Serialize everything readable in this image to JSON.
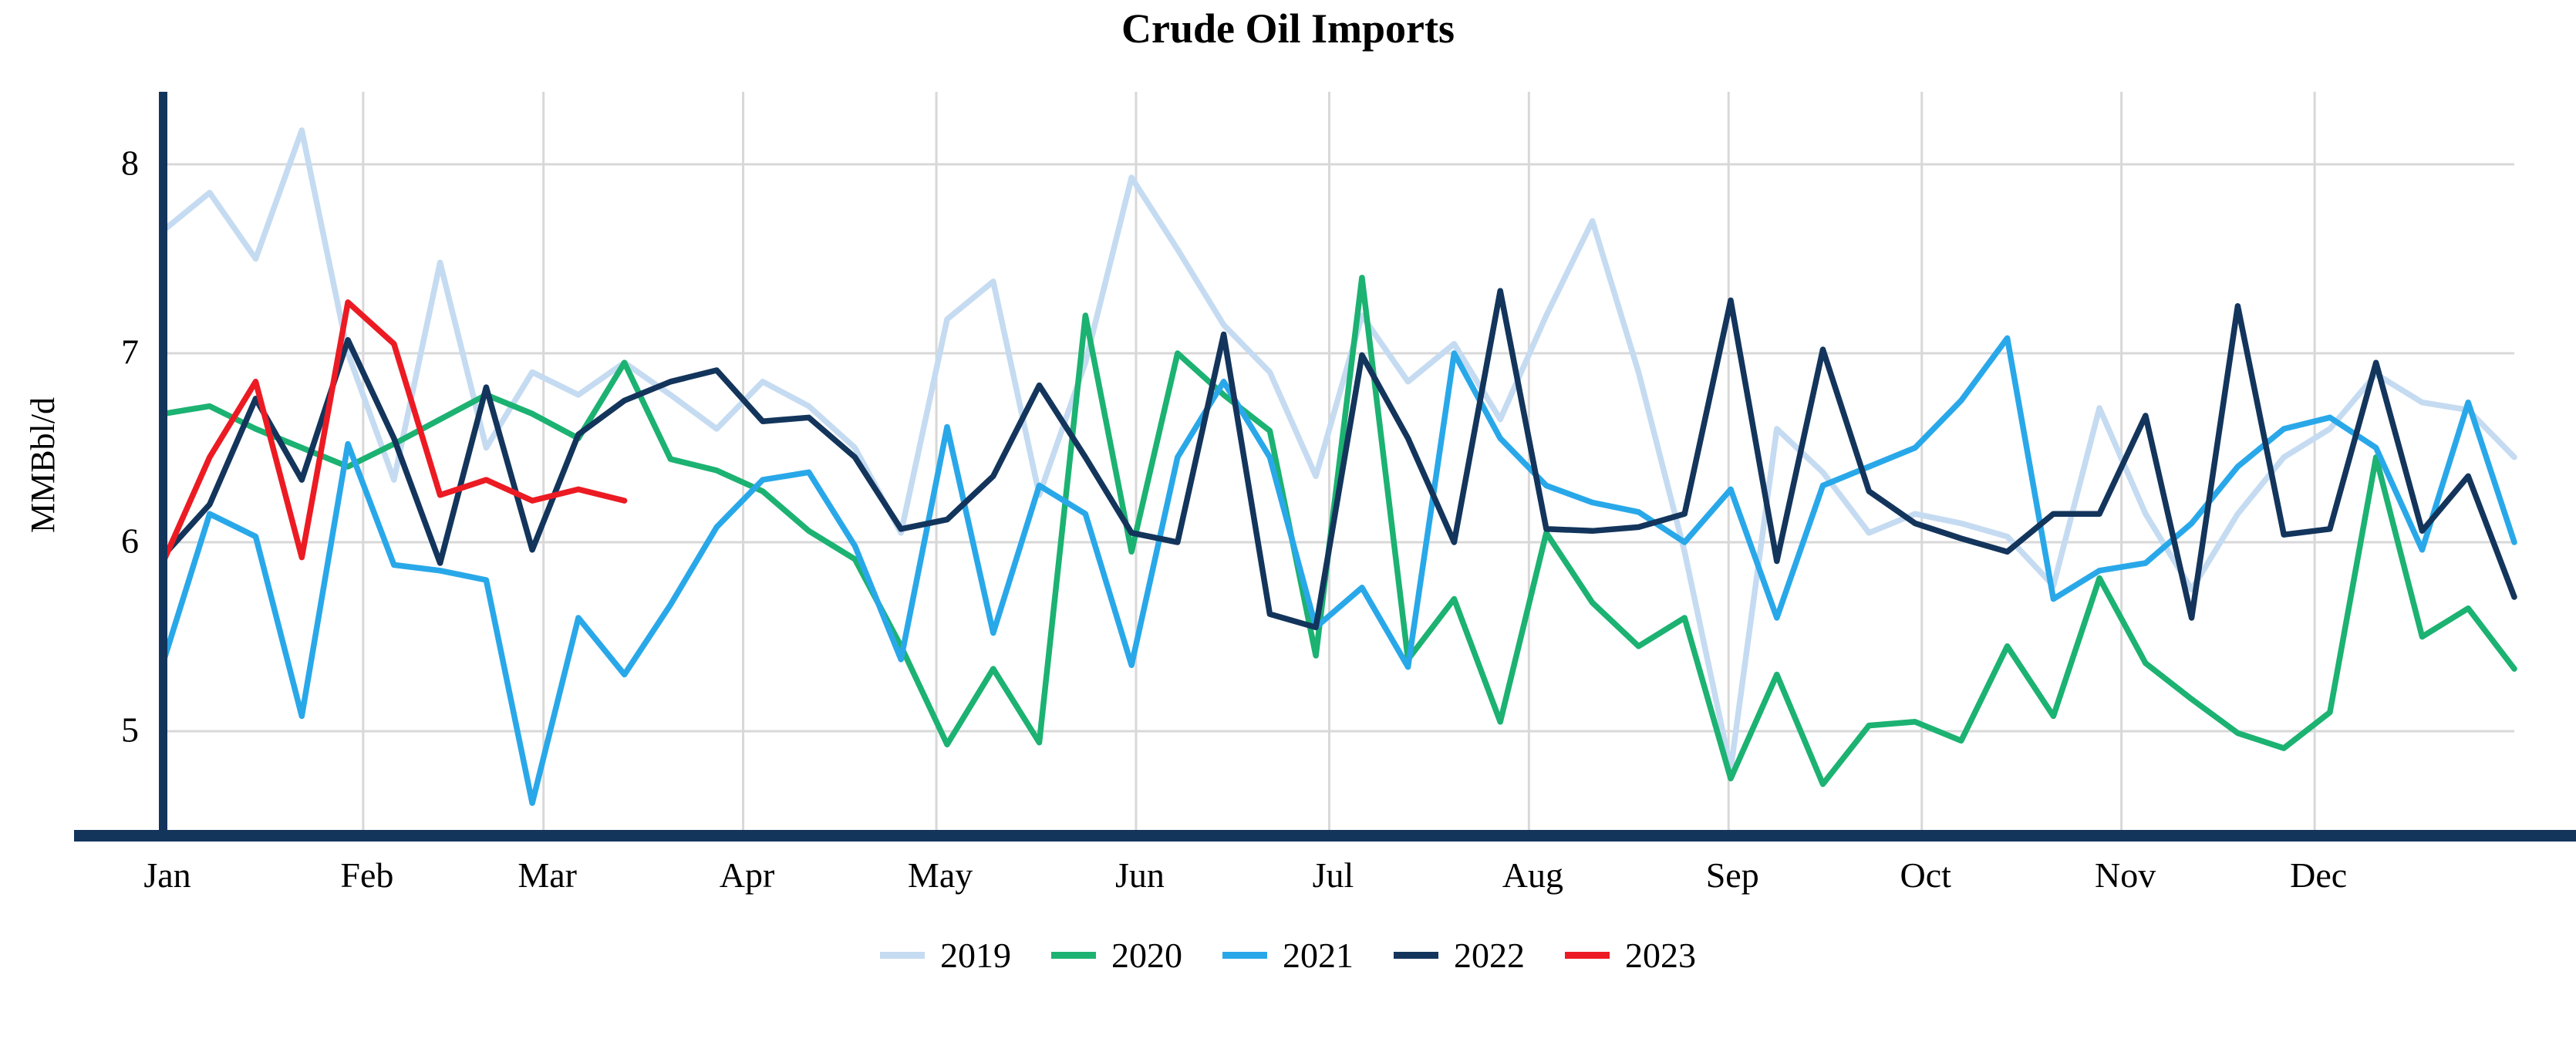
{
  "title": "Crude Oil Imports",
  "chart_data": {
    "type": "line",
    "title": "Crude Oil Imports",
    "xlabel": "",
    "ylabel": "MMBbl/d",
    "y_ticks": [
      5,
      6,
      7,
      8
    ],
    "y_axis_range_visible": [
      4.45,
      8.39
    ],
    "grid": true,
    "grid_color": "#D8D8D8",
    "axis_color": "#13355C",
    "legend_position": "bottom-center",
    "x_tick_labels": [
      "Jan",
      "Feb",
      "Mar",
      "Apr",
      "May",
      "Jun",
      "Jul",
      "Aug",
      "Sep",
      "Oct",
      "Nov",
      "Dec"
    ],
    "month_day_offsets": [
      0,
      31,
      59,
      90,
      120,
      151,
      181,
      212,
      243,
      273,
      304,
      334
    ],
    "days_in_year": 365,
    "points_per_series": 52,
    "x_unit": "week of year",
    "series": [
      {
        "name": "2019",
        "color": "#C5DBF1",
        "values": [
          7.65,
          7.85,
          7.5,
          8.18,
          7.0,
          6.33,
          7.48,
          6.5,
          6.9,
          6.78,
          6.95,
          6.78,
          6.6,
          6.85,
          6.72,
          6.5,
          6.05,
          7.18,
          7.38,
          6.25,
          6.95,
          7.93,
          7.55,
          7.15,
          6.9,
          6.35,
          7.2,
          6.85,
          7.05,
          6.65,
          7.2,
          7.7,
          6.9,
          5.95,
          4.8,
          6.6,
          6.37,
          6.05,
          6.15,
          6.1,
          6.03,
          5.77,
          6.71,
          6.15,
          5.75,
          6.15,
          6.45,
          6.6,
          6.89,
          6.74,
          6.7,
          6.45
        ]
      },
      {
        "name": "2020",
        "color": "#1CB272",
        "values": [
          6.68,
          6.72,
          6.6,
          6.5,
          6.4,
          6.52,
          6.65,
          6.78,
          6.68,
          6.55,
          6.95,
          6.44,
          6.38,
          6.27,
          6.06,
          5.91,
          5.45,
          4.93,
          5.33,
          4.94,
          7.2,
          5.95,
          7.0,
          6.78,
          6.59,
          5.4,
          7.4,
          5.38,
          5.7,
          5.05,
          6.05,
          5.68,
          5.45,
          5.6,
          4.75,
          5.3,
          4.72,
          5.03,
          5.05,
          4.95,
          5.45,
          5.08,
          5.81,
          5.36,
          5.17,
          4.99,
          4.91,
          5.1,
          6.45,
          5.5,
          5.65,
          5.33
        ]
      },
      {
        "name": "2021",
        "color": "#29A8E9",
        "values": [
          5.37,
          6.15,
          6.03,
          5.08,
          6.52,
          5.88,
          5.85,
          5.8,
          4.62,
          5.6,
          5.3,
          5.67,
          6.08,
          6.33,
          6.37,
          5.98,
          5.38,
          6.61,
          5.52,
          6.3,
          6.15,
          5.35,
          6.45,
          6.85,
          6.45,
          5.55,
          5.76,
          5.34,
          7.0,
          6.55,
          6.3,
          6.21,
          6.16,
          6.0,
          6.28,
          5.6,
          6.3,
          6.4,
          6.5,
          6.75,
          7.08,
          5.7,
          5.85,
          5.89,
          6.1,
          6.4,
          6.6,
          6.66,
          6.5,
          5.96,
          6.74,
          6.0
        ]
      },
      {
        "name": "2022",
        "color": "#13355C",
        "values": [
          5.93,
          6.2,
          6.76,
          6.33,
          7.07,
          6.55,
          5.89,
          6.82,
          5.96,
          6.57,
          6.75,
          6.85,
          6.91,
          6.64,
          6.66,
          6.45,
          6.07,
          6.12,
          6.35,
          6.83,
          6.45,
          6.05,
          6.0,
          7.1,
          5.62,
          5.55,
          6.99,
          6.55,
          6.0,
          7.33,
          6.07,
          6.06,
          6.08,
          6.15,
          7.28,
          5.9,
          7.02,
          6.27,
          6.1,
          6.02,
          5.95,
          6.15,
          6.15,
          6.67,
          5.6,
          7.25,
          6.04,
          6.07,
          6.95,
          6.06,
          6.35,
          5.71
        ]
      },
      {
        "name": "2023",
        "color": "#EC1B23",
        "values": [
          5.9,
          6.45,
          6.85,
          5.92,
          7.27,
          7.05,
          6.25,
          6.33,
          6.22,
          6.28,
          6.22
        ]
      }
    ]
  },
  "layout_note_visible_text_only": true
}
